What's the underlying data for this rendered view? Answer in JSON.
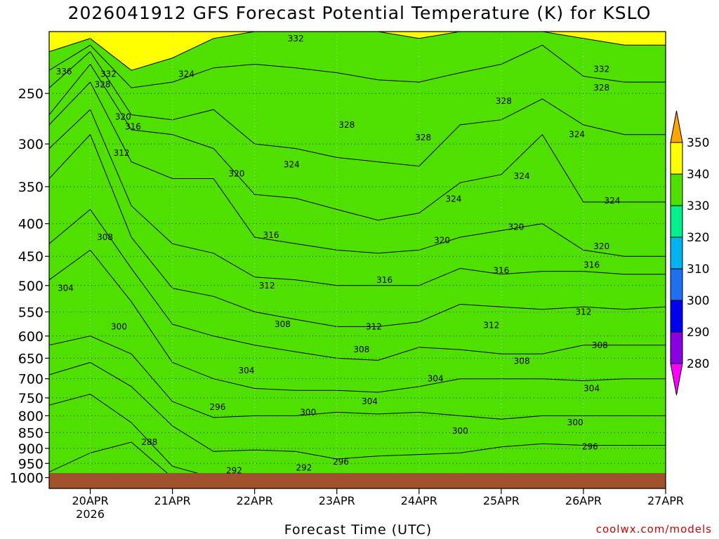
{
  "title": "2026041912 GFS Forecast Potential Temperature (K) for KSLO",
  "credit": "coolwx.com/models",
  "chart_data": {
    "type": "heatmap",
    "title": "2026041912 GFS Forecast Potential Temperature (K) for KSLO",
    "xlabel": "Forecast Time (UTC)",
    "ylabel": "",
    "y_scale": "log",
    "y_reversed": true,
    "ylim": [
      1040,
      200
    ],
    "y_ticks": [
      250,
      300,
      350,
      400,
      450,
      500,
      550,
      600,
      650,
      700,
      750,
      800,
      850,
      900,
      950,
      1000
    ],
    "x_ticks": [
      {
        "label": "20APR",
        "sub": "2026",
        "day": 1
      },
      {
        "label": "21APR",
        "day": 2
      },
      {
        "label": "22APR",
        "day": 3
      },
      {
        "label": "23APR",
        "day": 4
      },
      {
        "label": "24APR",
        "day": 5
      },
      {
        "label": "25APR",
        "day": 6
      },
      {
        "label": "26APR",
        "day": 7
      },
      {
        "label": "27APR",
        "day": 8
      }
    ],
    "xlim": [
      0.5,
      8.0
    ],
    "grid": "dotted",
    "colorbar": {
      "levels": [
        280,
        290,
        300,
        310,
        320,
        330,
        340,
        350
      ],
      "colors": [
        "#ff00ff",
        "#8a00e0",
        "#0000f0",
        "#1f6ff0",
        "#00b4f0",
        "#00f08c",
        "#50e000",
        "#ffff00",
        "#ffa500"
      ],
      "extend": "both",
      "placement": "right"
    },
    "terrain_color": "#a0522d",
    "contour_interval": 4,
    "times": [
      0.5,
      1.0,
      1.5,
      2.0,
      2.5,
      3.0,
      3.5,
      4.0,
      4.5,
      5.0,
      5.5,
      6.0,
      6.5,
      7.0,
      7.5,
      8.0
    ],
    "isentrope_pressures": {
      "288": [
        980,
        915,
        880,
        1000,
        1040,
        1040,
        1040,
        1040,
        1040,
        1040,
        1040,
        1040,
        1040,
        1040,
        1040,
        1040
      ],
      "292": [
        770,
        740,
        820,
        960,
        1000,
        1000,
        1040,
        1040,
        1040,
        1040,
        1040,
        1010,
        1010,
        1000,
        1020,
        1030
      ],
      "296": [
        690,
        660,
        720,
        830,
        910,
        905,
        910,
        935,
        925,
        920,
        915,
        895,
        885,
        890,
        890,
        890
      ],
      "300": [
        620,
        600,
        640,
        760,
        805,
        800,
        800,
        790,
        795,
        790,
        800,
        810,
        800,
        800,
        800,
        800
      ],
      "304": [
        490,
        440,
        530,
        660,
        700,
        725,
        730,
        730,
        735,
        720,
        700,
        700,
        700,
        705,
        700,
        700
      ],
      "308": [
        430,
        380,
        470,
        575,
        600,
        620,
        635,
        650,
        655,
        625,
        630,
        640,
        640,
        620,
        620,
        620
      ],
      "312": [
        340,
        290,
        420,
        505,
        520,
        550,
        565,
        580,
        580,
        570,
        535,
        540,
        545,
        540,
        545,
        540
      ],
      "316": [
        305,
        265,
        375,
        430,
        445,
        485,
        490,
        500,
        500,
        500,
        470,
        480,
        475,
        475,
        480,
        480
      ],
      "320": [
        280,
        240,
        320,
        340,
        340,
        420,
        430,
        440,
        445,
        440,
        420,
        410,
        400,
        440,
        450,
        450
      ],
      "324": [
        270,
        225,
        285,
        290,
        305,
        360,
        365,
        380,
        395,
        385,
        345,
        335,
        290,
        370,
        370,
        370
      ],
      "328": [
        245,
        215,
        270,
        275,
        265,
        300,
        305,
        315,
        320,
        325,
        280,
        275,
        255,
        280,
        290,
        290
      ],
      "332": [
        230,
        210,
        245,
        240,
        228,
        225,
        228,
        232,
        238,
        240,
        232,
        225,
        210,
        235,
        240,
        240
      ],
      "336": [
        215,
        205,
        230,
        220,
        205,
        200,
        200,
        200,
        200,
        205,
        200,
        200,
        200,
        205,
        210,
        210
      ]
    },
    "contour_labels": [
      {
        "text": "336",
        "t": 0.68,
        "p": 231
      },
      {
        "text": "332",
        "t": 1.22,
        "p": 233
      },
      {
        "text": "332",
        "t": 3.5,
        "p": 205
      },
      {
        "text": "332",
        "t": 7.22,
        "p": 229
      },
      {
        "text": "328",
        "t": 1.15,
        "p": 242
      },
      {
        "text": "328",
        "t": 4.12,
        "p": 280
      },
      {
        "text": "328",
        "t": 5.05,
        "p": 293
      },
      {
        "text": "328",
        "t": 6.03,
        "p": 257
      },
      {
        "text": "328",
        "t": 7.22,
        "p": 245
      },
      {
        "text": "324",
        "t": 2.17,
        "p": 233
      },
      {
        "text": "324",
        "t": 3.45,
        "p": 323
      },
      {
        "text": "324",
        "t": 5.42,
        "p": 366
      },
      {
        "text": "324",
        "t": 6.25,
        "p": 337
      },
      {
        "text": "324",
        "t": 6.92,
        "p": 290
      },
      {
        "text": "324",
        "t": 7.35,
        "p": 368
      },
      {
        "text": "320",
        "t": 1.4,
        "p": 272
      },
      {
        "text": "320",
        "t": 2.78,
        "p": 334
      },
      {
        "text": "320",
        "t": 5.28,
        "p": 425
      },
      {
        "text": "320",
        "t": 6.18,
        "p": 405
      },
      {
        "text": "320",
        "t": 7.22,
        "p": 434
      },
      {
        "text": "316",
        "t": 1.52,
        "p": 282
      },
      {
        "text": "316",
        "t": 3.2,
        "p": 417
      },
      {
        "text": "316",
        "t": 4.58,
        "p": 490
      },
      {
        "text": "316",
        "t": 6.0,
        "p": 474
      },
      {
        "text": "316",
        "t": 7.1,
        "p": 464
      },
      {
        "text": "312",
        "t": 1.38,
        "p": 310
      },
      {
        "text": "312",
        "t": 3.15,
        "p": 500
      },
      {
        "text": "312",
        "t": 4.45,
        "p": 580
      },
      {
        "text": "312",
        "t": 5.88,
        "p": 577
      },
      {
        "text": "312",
        "t": 7.0,
        "p": 550
      },
      {
        "text": "308",
        "t": 1.18,
        "p": 420
      },
      {
        "text": "308",
        "t": 3.34,
        "p": 575
      },
      {
        "text": "308",
        "t": 4.3,
        "p": 630
      },
      {
        "text": "308",
        "t": 6.25,
        "p": 657
      },
      {
        "text": "308",
        "t": 7.2,
        "p": 620
      },
      {
        "text": "304",
        "t": 0.7,
        "p": 505
      },
      {
        "text": "304",
        "t": 2.9,
        "p": 680
      },
      {
        "text": "304",
        "t": 4.4,
        "p": 760
      },
      {
        "text": "304",
        "t": 5.2,
        "p": 700
      },
      {
        "text": "304",
        "t": 7.1,
        "p": 725
      },
      {
        "text": "300",
        "t": 1.35,
        "p": 580
      },
      {
        "text": "300",
        "t": 3.65,
        "p": 790
      },
      {
        "text": "300",
        "t": 5.5,
        "p": 845
      },
      {
        "text": "300",
        "t": 6.9,
        "p": 820
      },
      {
        "text": "296",
        "t": 2.55,
        "p": 775
      },
      {
        "text": "296",
        "t": 4.05,
        "p": 945
      },
      {
        "text": "296",
        "t": 7.08,
        "p": 895
      },
      {
        "text": "292",
        "t": 2.75,
        "p": 975
      },
      {
        "text": "292",
        "t": 3.6,
        "p": 965
      },
      {
        "text": "288",
        "t": 1.72,
        "p": 880
      }
    ]
  }
}
